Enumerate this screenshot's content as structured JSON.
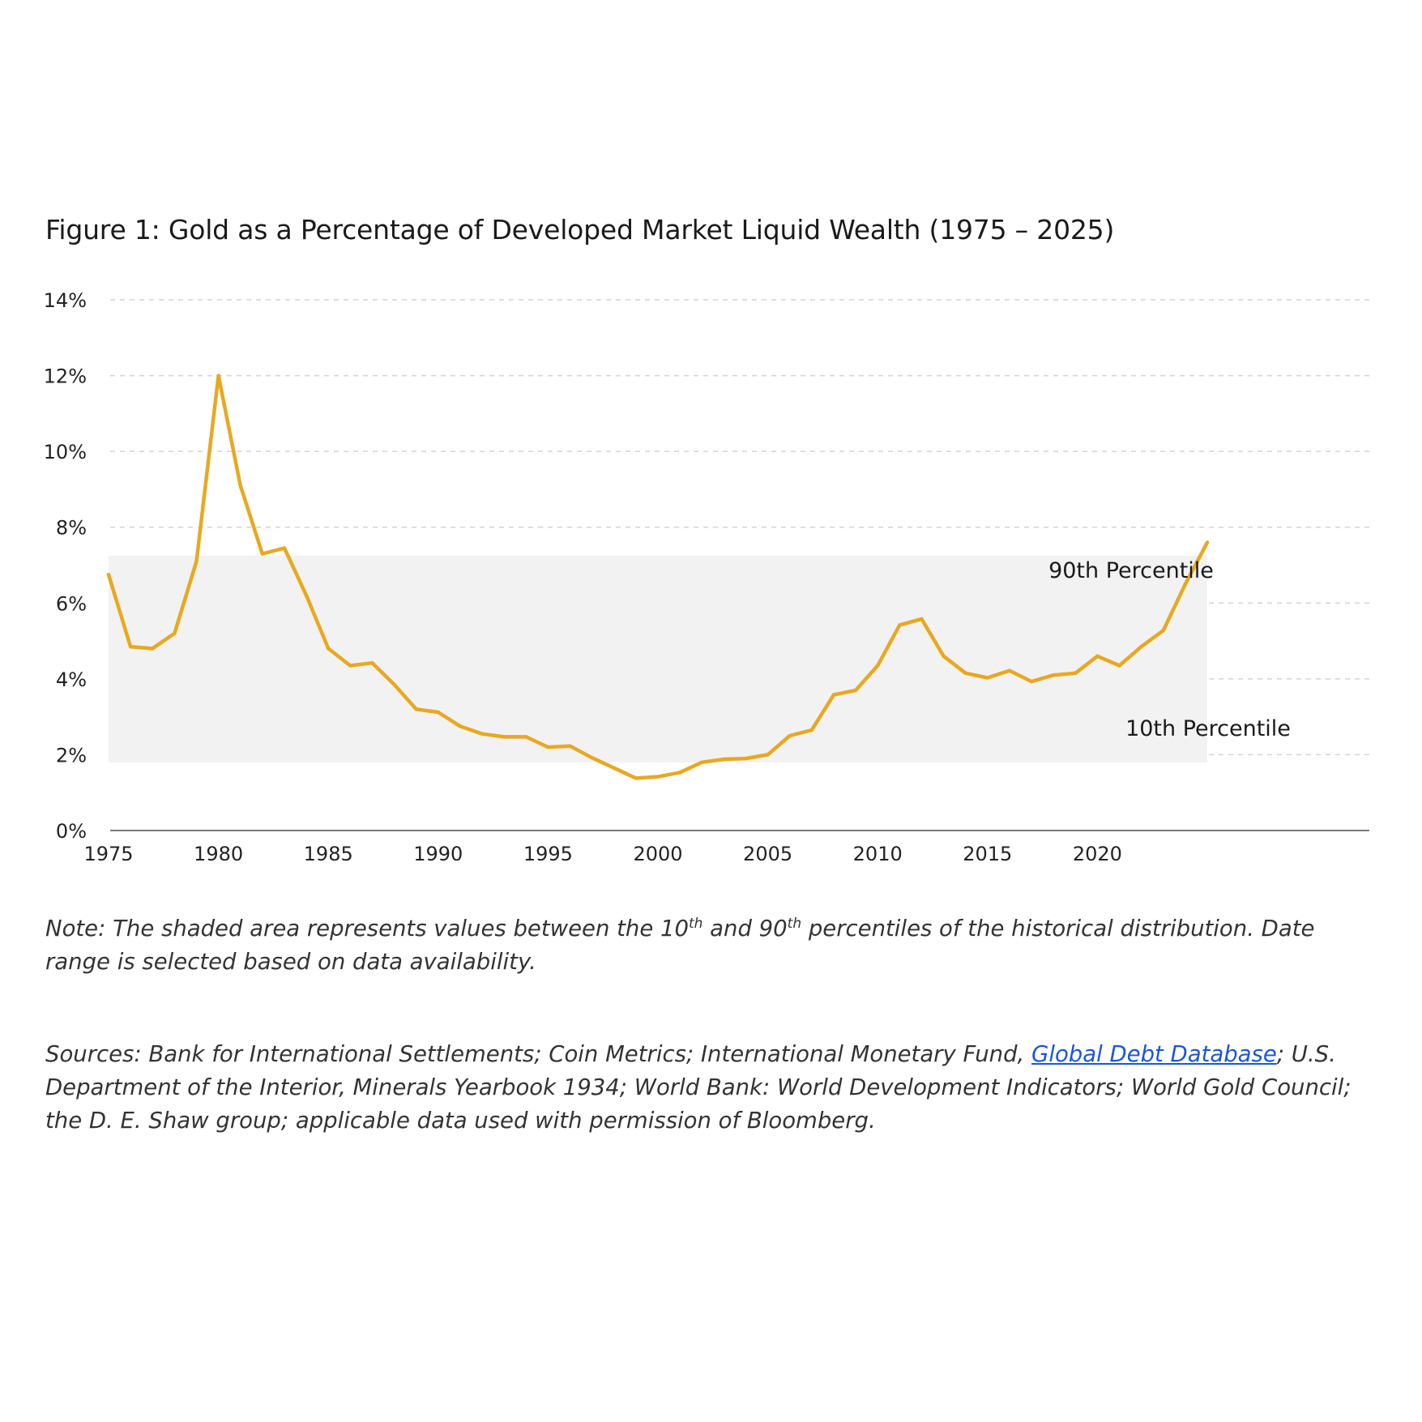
{
  "title": "Figure 1: Gold as a Percentage of Developed Market Liquid Wealth (1975 – 2025)",
  "chart_data": {
    "type": "line",
    "title": "Figure 1: Gold as a Percentage of Developed Market Liquid Wealth (1975 – 2025)",
    "xlabel": "",
    "ylabel": "",
    "xlim": [
      1975,
      2025
    ],
    "ylim": [
      0,
      14
    ],
    "x_ticks": [
      1975,
      1980,
      1985,
      1990,
      1995,
      2000,
      2005,
      2010,
      2015,
      2020
    ],
    "y_ticks": [
      0,
      2,
      4,
      6,
      8,
      10,
      12,
      14
    ],
    "y_tick_labels": [
      "0%",
      "2%",
      "4%",
      "6%",
      "8%",
      "10%",
      "12%",
      "14%"
    ],
    "grid": "horizontal dashed",
    "band": {
      "low": 1.8,
      "high": 7.25
    },
    "band_labels": {
      "upper": "90th Percentile",
      "lower": "10th Percentile"
    },
    "series": [
      {
        "color": "#E8A820",
        "x": [
          1975,
          1976,
          1977,
          1978,
          1979,
          1980,
          1981,
          1982,
          1983,
          1984,
          1985,
          1986,
          1987,
          1988,
          1989,
          1990,
          1991,
          1992,
          1993,
          1994,
          1995,
          1996,
          1997,
          1998,
          1999,
          2000,
          2001,
          2002,
          2003,
          2004,
          2005,
          2006,
          2007,
          2008,
          2009,
          2010,
          2011,
          2012,
          2013,
          2014,
          2015,
          2016,
          2017,
          2018,
          2019,
          2020,
          2021,
          2022,
          2023,
          2024,
          2025
        ],
        "values": [
          6.75,
          4.85,
          4.8,
          5.2,
          7.1,
          12.0,
          9.1,
          7.3,
          7.45,
          6.2,
          4.8,
          4.35,
          4.42,
          3.85,
          3.2,
          3.12,
          2.75,
          2.55,
          2.47,
          2.47,
          2.2,
          2.23,
          1.92,
          1.65,
          1.38,
          1.42,
          1.53,
          1.8,
          1.88,
          1.9,
          2.0,
          2.5,
          2.65,
          3.58,
          3.7,
          4.35,
          5.42,
          5.58,
          4.6,
          4.15,
          4.03,
          4.22,
          3.93,
          4.1,
          4.15,
          4.6,
          4.35,
          4.85,
          5.28,
          6.5,
          7.6
        ]
      }
    ]
  },
  "note": {
    "before": "Note: The shaded area represents values between the 10",
    "sup1": "th",
    "middle": " and 90",
    "sup2": "th",
    "after": " percentiles of the historical distribution. Date range is selected based on data availability."
  },
  "sources": {
    "before": "Sources: Bank for International Settlements; Coin Metrics; International Monetary Fund, ",
    "link": "Global Debt Database",
    "after": "; U.S. Department of the Interior, Minerals Yearbook 1934; World Bank: World Development Indicators; World Gold Council; the D. E. Shaw group; applicable data used with permission of Bloomberg."
  }
}
